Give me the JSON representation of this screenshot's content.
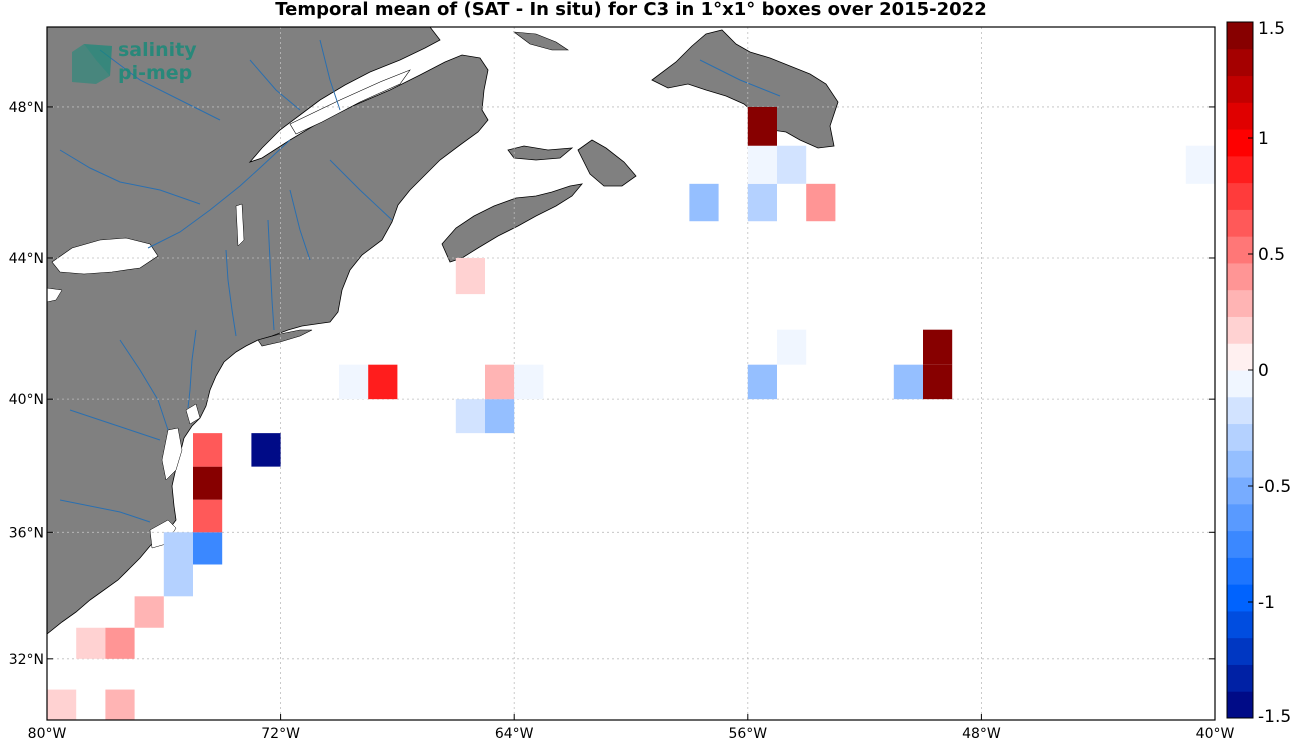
{
  "title": "Temporal mean of (SAT - In situ) for C3 in 1°x1° boxes over 2015-2022",
  "logo": {
    "line1": "salinity",
    "line2": "pi-mep"
  },
  "map": {
    "lon_range": [
      -80,
      -40
    ],
    "lat_range": [
      30,
      50
    ],
    "lon_ticks": [
      {
        "value": -80,
        "label": "80°W"
      },
      {
        "value": -72,
        "label": "72°W"
      },
      {
        "value": -64,
        "label": "64°W"
      },
      {
        "value": -56,
        "label": "56°W"
      },
      {
        "value": -48,
        "label": "48°W"
      },
      {
        "value": -40,
        "label": "40°W"
      }
    ],
    "lat_ticks": [
      {
        "value": 32,
        "label": "32°N"
      },
      {
        "value": 36,
        "label": "36°N"
      },
      {
        "value": 40,
        "label": "40°N"
      },
      {
        "value": 44,
        "label": "44°N"
      },
      {
        "value": 48,
        "label": "48°N"
      }
    ],
    "grid": true,
    "land_color": "#808080",
    "river_color": "#2a6fb0"
  },
  "colorbar": {
    "range": [
      -1.5,
      1.5
    ],
    "levels": 26,
    "ticks": [
      {
        "value": 1.5,
        "label": "1.5"
      },
      {
        "value": 1,
        "label": "1"
      },
      {
        "value": 0.5,
        "label": "0.5"
      },
      {
        "value": 0,
        "label": "0"
      },
      {
        "value": -0.5,
        "label": "-0.5"
      },
      {
        "value": -1,
        "label": "-1"
      },
      {
        "value": -1.5,
        "label": "-1.5"
      }
    ]
  },
  "chart_data": {
    "type": "heatmap",
    "title": "Temporal mean of (SAT - In situ) for C3 in 1°x1° boxes over 2015-2022",
    "cell_size_deg": 1,
    "cells": [
      {
        "lon": -79.5,
        "lat": 30.5,
        "value": 0.15
      },
      {
        "lon": -77.5,
        "lat": 30.5,
        "value": 0.25
      },
      {
        "lon": -78.5,
        "lat": 32.5,
        "value": 0.15
      },
      {
        "lon": -77.5,
        "lat": 32.5,
        "value": 0.4
      },
      {
        "lon": -76.5,
        "lat": 33.5,
        "value": 0.3
      },
      {
        "lon": -75.5,
        "lat": 34.5,
        "value": -0.25
      },
      {
        "lon": -75.5,
        "lat": 35.5,
        "value": -0.3
      },
      {
        "lon": -74.5,
        "lat": 35.5,
        "value": -0.8
      },
      {
        "lon": -74.5,
        "lat": 36.5,
        "value": 0.65
      },
      {
        "lon": -74.5,
        "lat": 37.5,
        "value": 1.45
      },
      {
        "lon": -74.5,
        "lat": 38.5,
        "value": 0.65
      },
      {
        "lon": -72.5,
        "lat": 38.5,
        "value": -1.45
      },
      {
        "lon": -69.5,
        "lat": 40.5,
        "value": -0.1
      },
      {
        "lon": -68.5,
        "lat": 40.5,
        "value": 0.85
      },
      {
        "lon": -65.5,
        "lat": 39.5,
        "value": -0.15
      },
      {
        "lon": -64.5,
        "lat": 39.5,
        "value": -0.45
      },
      {
        "lon": -64.5,
        "lat": 40.5,
        "value": 0.25
      },
      {
        "lon": -63.5,
        "lat": 40.5,
        "value": -0.1
      },
      {
        "lon": -65.5,
        "lat": 43.5,
        "value": 0.12
      },
      {
        "lon": -57.5,
        "lat": 45.5,
        "value": -0.45
      },
      {
        "lon": -55.5,
        "lat": 45.5,
        "value": -0.3
      },
      {
        "lon": -53.5,
        "lat": 45.5,
        "value": 0.35
      },
      {
        "lon": -55.5,
        "lat": 46.5,
        "value": -0.1
      },
      {
        "lon": -54.5,
        "lat": 46.5,
        "value": -0.15
      },
      {
        "lon": -55.5,
        "lat": 47.5,
        "value": 1.45
      },
      {
        "lon": -54.5,
        "lat": 41.5,
        "value": -0.1
      },
      {
        "lon": -55.5,
        "lat": 40.5,
        "value": -0.35
      },
      {
        "lon": -50.5,
        "lat": 40.5,
        "value": -0.35
      },
      {
        "lon": -49.5,
        "lat": 40.5,
        "value": 1.45
      },
      {
        "lon": -49.5,
        "lat": 41.5,
        "value": 1.45
      },
      {
        "lon": -40.5,
        "lat": 46.5,
        "value": -0.1
      }
    ]
  }
}
